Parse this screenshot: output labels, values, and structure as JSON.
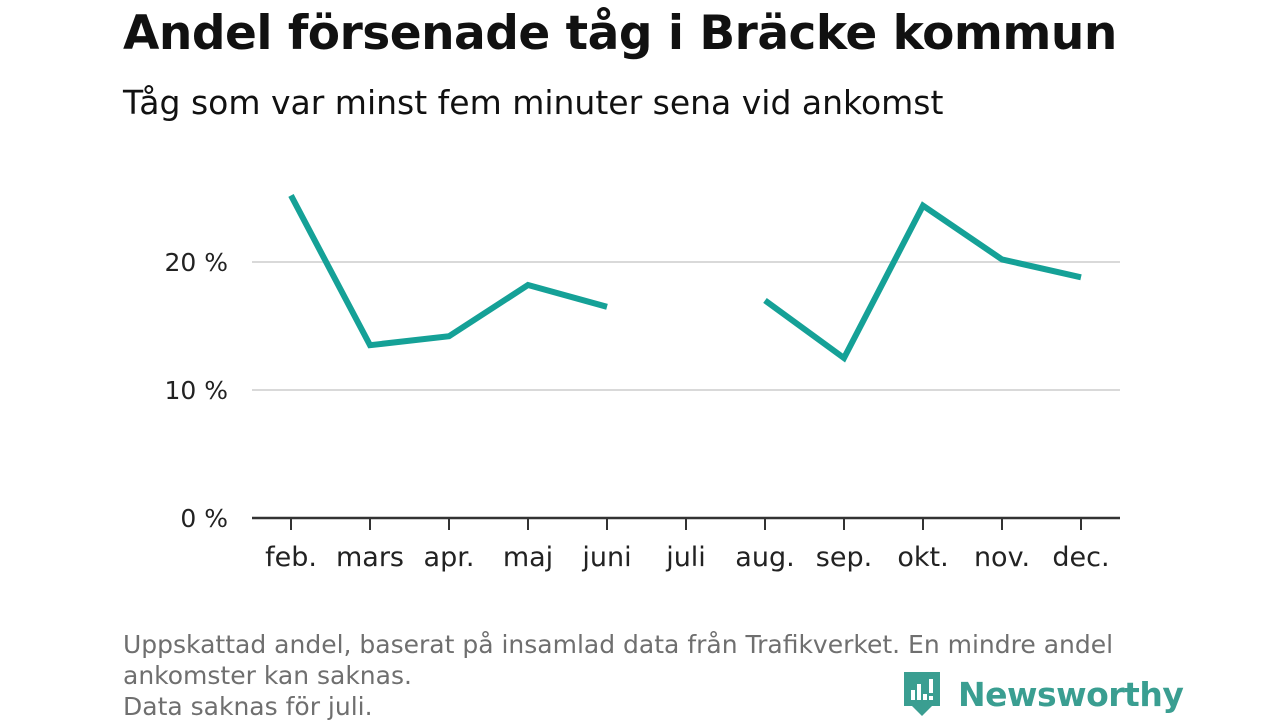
{
  "title": "Andel försenade tåg i Bräcke kommun",
  "subtitle": "Tåg som var minst fem minuter sena vid ankomst",
  "notes": [
    "Uppskattad andel, baserat på insamlad data från Trafikverket. En mindre andel",
    "ankomster kan saknas.",
    "Data saknas för juli."
  ],
  "brand": {
    "name": "Newsworthy",
    "color": "#3a9e91"
  },
  "chart_data": {
    "type": "line",
    "categories": [
      "feb.",
      "mars",
      "apr.",
      "maj",
      "juni",
      "juli",
      "aug.",
      "sep.",
      "okt.",
      "nov.",
      "dec."
    ],
    "series": [
      {
        "values": [
          25.2,
          13.5,
          14.2,
          18.2,
          16.5,
          null,
          17.0,
          12.5,
          24.4,
          20.2,
          18.8
        ]
      }
    ],
    "y_ticks": [
      0,
      10,
      20
    ],
    "y_tick_labels": [
      "0 %",
      "10 %",
      "20 %"
    ],
    "ylim": [
      0,
      27
    ],
    "line_color": "#15a197",
    "grid": true
  }
}
